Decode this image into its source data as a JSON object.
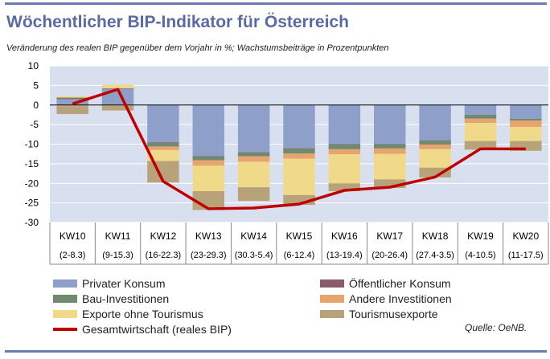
{
  "title": "Wöchentlicher BIP-Indikator für Österreich",
  "subtitle": "Veränderung des realen BIP gegenüber dem Vorjahr in %; Wachstumsbeiträge in Prozentpunkten",
  "source": "Quelle: OeNB.",
  "colors": {
    "privater_konsum": "#8ea0c9",
    "oeffentlicher_konsum": "#8b5a6b",
    "bau": "#6f8a6f",
    "andere_inv": "#e7a46f",
    "exporte": "#f1d98a",
    "tourismus": "#b8a27a",
    "line": "#c00000",
    "plot_bg": "#d8e0ef"
  },
  "legend": [
    {
      "key": "privater_konsum",
      "label": "Privater Konsum",
      "kind": "bar"
    },
    {
      "key": "oeffentlicher_konsum",
      "label": "Öffentlicher Konsum",
      "kind": "bar"
    },
    {
      "key": "bau",
      "label": "Bau-Investitionen",
      "kind": "bar"
    },
    {
      "key": "andere_inv",
      "label": "Andere Investitionen",
      "kind": "bar"
    },
    {
      "key": "exporte",
      "label": "Exporte ohne Tourismus",
      "kind": "bar"
    },
    {
      "key": "tourismus",
      "label": "Tourismusexporte",
      "kind": "bar"
    },
    {
      "key": "line",
      "label": "Gesamtwirtschaft (reales BIP)",
      "kind": "line"
    }
  ],
  "chart_data": {
    "type": "bar",
    "stacked": true,
    "ylim": [
      -30,
      10
    ],
    "yticks": [
      10,
      5,
      0,
      -5,
      -10,
      -15,
      -20,
      -25,
      -30
    ],
    "grid": true,
    "categories": [
      "KW10",
      "KW11",
      "KW12",
      "KW13",
      "KW14",
      "KW15",
      "KW16",
      "KW17",
      "KW18",
      "KW19",
      "KW20"
    ],
    "category_dates": [
      "(2-8.3)",
      "(9-15.3)",
      "(16-22.3)",
      "(23-29.3)",
      "(30.3-5.4)",
      "(6-12.4)",
      "(13-19.4)",
      "(20-26.4)",
      "(27.4-3.5)",
      "(4-10.5)",
      "(11-17.5)"
    ],
    "series": [
      {
        "name": "Privater Konsum",
        "key": "privater_konsum",
        "values": [
          1.5,
          4.0,
          -9.5,
          -13.0,
          -12.0,
          -11.0,
          -10.0,
          -10.0,
          -9.0,
          -2.5,
          -3.5
        ]
      },
      {
        "name": "Öffentlicher Konsum",
        "key": "oeffentlicher_konsum",
        "values": [
          0.2,
          0.1,
          -0.1,
          -0.1,
          -0.1,
          -0.1,
          -0.1,
          -0.1,
          -0.1,
          0.0,
          0.0
        ]
      },
      {
        "name": "Bau-Investitionen",
        "key": "bau",
        "values": [
          0.2,
          0.2,
          -1.0,
          -1.0,
          -1.0,
          -1.3,
          -1.2,
          -1.0,
          -1.0,
          -1.0,
          -0.5
        ]
      },
      {
        "name": "Andere Investitionen",
        "key": "andere_inv",
        "values": [
          -0.3,
          -0.2,
          -0.9,
          -1.4,
          -1.4,
          -1.3,
          -1.3,
          -1.4,
          -1.2,
          -1.1,
          -1.6
        ]
      },
      {
        "name": "Exporte ohne Tourismus",
        "key": "exporte",
        "values": [
          0.4,
          0.9,
          -2.8,
          -6.5,
          -6.5,
          -9.3,
          -7.4,
          -6.5,
          -4.7,
          -4.6,
          -3.6
        ]
      },
      {
        "name": "Tourismusexporte",
        "key": "tourismus",
        "values": [
          -2.0,
          -1.2,
          -5.5,
          -4.8,
          -3.5,
          -2.5,
          -2.0,
          -2.2,
          -2.5,
          -2.2,
          -2.5
        ]
      }
    ],
    "line": {
      "name": "Gesamtwirtschaft (reales BIP)",
      "key": "line",
      "values": [
        0.3,
        4.0,
        -19.5,
        -26.5,
        -26.3,
        -25.3,
        -21.8,
        -21.0,
        -18.4,
        -11.2,
        -11.2
      ]
    }
  }
}
